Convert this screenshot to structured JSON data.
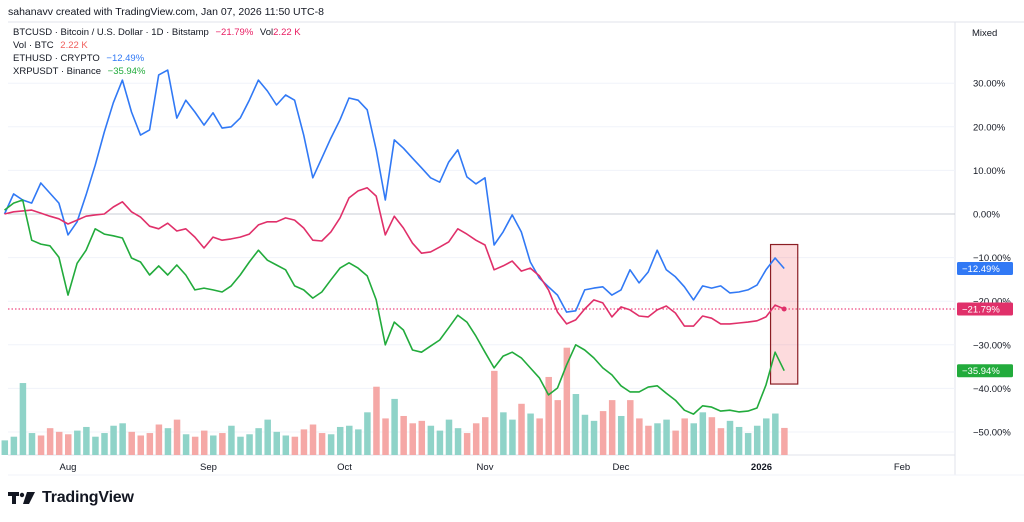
{
  "header": {
    "credit": "sahanavv created with TradingView.com, Jan 07, 2026 11:50 UTC-8"
  },
  "legend": [
    {
      "label": "BTCUSD · Bitcoin / U.S. Dollar · 1D · Bitstamp",
      "value": "−21.79%",
      "extra": "Vol",
      "extra_value": "2.22 K",
      "color": "#e91e63"
    },
    {
      "label": "Vol · BTC",
      "value": "2.22 K",
      "color": "#f0605d"
    },
    {
      "label": "ETHUSD · CRYPTO",
      "value": "−12.49%",
      "color": "#3179f5"
    },
    {
      "label": "XRPUSDT · Binance",
      "value": "−35.94%",
      "color": "#22ab3c"
    }
  ],
  "scale_mode": "Mixed",
  "brand": "TradingView",
  "chart_data": {
    "type": "line",
    "ylabel_unit": "%",
    "ylim": [
      -56,
      37
    ],
    "grid": true,
    "legend_placement": "top-left",
    "y_ticks": [
      "30.00%",
      "20.00%",
      "10.00%",
      "0.00%",
      "−10.00%",
      "−20.00%",
      "−30.00%",
      "−40.00%",
      "−50.00%"
    ],
    "y_tick_values": [
      30,
      20,
      10,
      0,
      -10,
      -20,
      -30,
      -40,
      -50
    ],
    "x_ticks": [
      {
        "label": "Aug",
        "date": "2025-08-01"
      },
      {
        "label": "Sep",
        "date": "2025-09-01"
      },
      {
        "label": "Oct",
        "date": "2025-10-01"
      },
      {
        "label": "Nov",
        "date": "2025-11-01"
      },
      {
        "label": "Dec",
        "date": "2025-12-01"
      },
      {
        "label": "2026",
        "date": "2026-01-01",
        "bold": true
      },
      {
        "label": "Feb",
        "date": "2026-02-01"
      }
    ],
    "x": [
      "2025-07-18",
      "2025-07-20",
      "2025-07-22",
      "2025-07-24",
      "2025-07-26",
      "2025-07-28",
      "2025-07-30",
      "2025-08-01",
      "2025-08-03",
      "2025-08-05",
      "2025-08-07",
      "2025-08-09",
      "2025-08-11",
      "2025-08-13",
      "2025-08-15",
      "2025-08-17",
      "2025-08-19",
      "2025-08-21",
      "2025-08-23",
      "2025-08-25",
      "2025-08-27",
      "2025-08-29",
      "2025-08-31",
      "2025-09-02",
      "2025-09-04",
      "2025-09-06",
      "2025-09-08",
      "2025-09-10",
      "2025-09-12",
      "2025-09-14",
      "2025-09-16",
      "2025-09-18",
      "2025-09-20",
      "2025-09-22",
      "2025-09-24",
      "2025-09-26",
      "2025-09-28",
      "2025-09-30",
      "2025-10-02",
      "2025-10-04",
      "2025-10-06",
      "2025-10-08",
      "2025-10-10",
      "2025-10-12",
      "2025-10-14",
      "2025-10-16",
      "2025-10-18",
      "2025-10-20",
      "2025-10-22",
      "2025-10-24",
      "2025-10-26",
      "2025-10-28",
      "2025-10-30",
      "2025-11-01",
      "2025-11-03",
      "2025-11-05",
      "2025-11-07",
      "2025-11-09",
      "2025-11-11",
      "2025-11-13",
      "2025-11-15",
      "2025-11-17",
      "2025-11-19",
      "2025-11-21",
      "2025-11-23",
      "2025-11-25",
      "2025-11-27",
      "2025-11-29",
      "2025-12-01",
      "2025-12-03",
      "2025-12-05",
      "2025-12-07",
      "2025-12-09",
      "2025-12-11",
      "2025-12-13",
      "2025-12-15",
      "2025-12-17",
      "2025-12-19",
      "2025-12-21",
      "2025-12-23",
      "2025-12-25",
      "2025-12-27",
      "2025-12-29",
      "2025-12-31",
      "2026-01-02",
      "2026-01-04",
      "2026-01-06"
    ],
    "series": [
      {
        "name": "ETHUSD · CRYPTO",
        "color": "#3179f5",
        "last_label": "−12.49%",
        "values": [
          0,
          4.6,
          3.2,
          2.5,
          7.1,
          4.8,
          2.5,
          -4.8,
          -1.8,
          4.4,
          11.2,
          18.8,
          25.5,
          30.7,
          23.4,
          18.1,
          19.3,
          31.9,
          33.0,
          22.0,
          26.1,
          23.4,
          20.4,
          23.2,
          19.7,
          20.0,
          22.0,
          26.1,
          30.7,
          28.2,
          25.0,
          27.3,
          26.1,
          18.1,
          8.3,
          12.8,
          17.4,
          21.6,
          26.6,
          26.1,
          23.9,
          14.7,
          3.2,
          17.0,
          15.1,
          12.8,
          10.6,
          8.3,
          7.3,
          11.9,
          14.7,
          8.5,
          6.9,
          8.3,
          -7.1,
          -4.1,
          -0.2,
          -4.1,
          -11.0,
          -14.7,
          -16.7,
          -18.6,
          -22.5,
          -22.2,
          -17.4,
          -17.0,
          -16.7,
          -18.6,
          -17.4,
          -12.8,
          -15.8,
          -13.3,
          -8.3,
          -12.8,
          -14.4,
          -16.7,
          -19.7,
          -16.5,
          -17.0,
          -16.5,
          -18.1,
          -17.9,
          -17.4,
          -16.3,
          -12.8,
          -10.1,
          -12.49
        ]
      },
      {
        "name": "BTCUSD · Bitcoin / U.S. Dollar · 1D · Bitstamp",
        "color": "#e0306a",
        "last_label": "−21.79%",
        "values": [
          0,
          0.5,
          0.7,
          0.9,
          0.2,
          -0.5,
          -1.1,
          -2.3,
          -1.4,
          -0.5,
          -0.2,
          0,
          1.6,
          2.8,
          0.5,
          -0.7,
          -2.8,
          -3.4,
          -2.1,
          -3.9,
          -3.4,
          -5.3,
          -7.8,
          -5.3,
          -6.0,
          -5.7,
          -5.3,
          -4.6,
          -2.5,
          -1.8,
          -1.8,
          -0.9,
          -1.4,
          -3.2,
          -6.0,
          -6.2,
          -4.1,
          -0.9,
          3.7,
          5.3,
          6.0,
          4.1,
          -4.8,
          -0.5,
          -3.2,
          -6.7,
          -9.0,
          -8.7,
          -7.6,
          -6.4,
          -3.4,
          -4.6,
          -6.0,
          -7.1,
          -12.8,
          -11.9,
          -10.8,
          -13.1,
          -12.4,
          -14.2,
          -17.4,
          -22.5,
          -25.2,
          -24.3,
          -21.8,
          -19.7,
          -20.4,
          -23.6,
          -21.3,
          -22.0,
          -23.4,
          -23.6,
          -22.0,
          -21.1,
          -22.7,
          -25.7,
          -25.7,
          -23.4,
          -23.9,
          -25.2,
          -25.2,
          -25.0,
          -24.8,
          -24.5,
          -23.6,
          -20.9,
          -21.79
        ]
      },
      {
        "name": "XRPUSDT · Binance",
        "color": "#22ab3c",
        "last_label": "−35.94%",
        "values": [
          0.9,
          2.5,
          3.2,
          -6.0,
          -6.9,
          -7.3,
          -9.9,
          -18.6,
          -11.3,
          -8.3,
          -3.4,
          -4.6,
          -5.0,
          -5.5,
          -10.1,
          -11.0,
          -14.0,
          -11.9,
          -14.0,
          -11.7,
          -14.0,
          -17.4,
          -17.0,
          -17.4,
          -17.9,
          -16.5,
          -14.0,
          -11.0,
          -8.3,
          -10.6,
          -11.7,
          -12.8,
          -16.5,
          -17.4,
          -19.3,
          -17.9,
          -15.1,
          -12.4,
          -11.2,
          -12.4,
          -14.2,
          -19.7,
          -30.0,
          -24.8,
          -26.6,
          -31.2,
          -31.7,
          -30.3,
          -28.9,
          -26.1,
          -23.2,
          -24.8,
          -28.0,
          -31.7,
          -35.3,
          -32.6,
          -31.7,
          -33.0,
          -35.3,
          -37.6,
          -41.5,
          -39.9,
          -34.6,
          -30.0,
          -31.2,
          -33.0,
          -35.3,
          -36.9,
          -39.4,
          -40.8,
          -40.8,
          -39.7,
          -39.4,
          -41.1,
          -42.7,
          -45.0,
          -45.9,
          -44.0,
          -44.3,
          -45.2,
          -45.0,
          -45.4,
          -45.2,
          -44.5,
          -39.2,
          -31.7,
          -35.94
        ]
      }
    ],
    "volume": {
      "name": "Vol · BTC",
      "unit": "K",
      "up_color": "#8fd3c8",
      "down_color": "#f5a8a6",
      "values": [
        1.2,
        1.5,
        5.9,
        1.8,
        1.6,
        2.2,
        1.9,
        1.7,
        2.0,
        2.3,
        1.5,
        1.8,
        2.4,
        2.6,
        1.9,
        1.6,
        1.8,
        2.5,
        2.2,
        2.9,
        1.7,
        1.5,
        2.0,
        1.6,
        1.8,
        2.4,
        1.5,
        1.7,
        2.2,
        2.9,
        1.9,
        1.6,
        1.5,
        2.1,
        2.5,
        1.8,
        1.7,
        2.3,
        2.4,
        2.1,
        3.5,
        5.6,
        3.0,
        4.6,
        3.2,
        2.6,
        2.8,
        2.4,
        2.0,
        2.9,
        2.2,
        1.8,
        2.6,
        3.1,
        6.9,
        3.5,
        2.9,
        4.2,
        3.4,
        3.0,
        6.4,
        4.5,
        8.8,
        5.0,
        3.3,
        2.8,
        3.6,
        4.5,
        3.2,
        4.5,
        3.0,
        2.4,
        2.6,
        2.9,
        2.0,
        3.0,
        2.6,
        3.5,
        3.1,
        2.2,
        2.8,
        2.3,
        1.8,
        2.4,
        3.0,
        3.4,
        2.22
      ]
    },
    "highlight": {
      "from": "2026-01-03",
      "to": "2026-01-09",
      "y_range": [
        -39,
        -7
      ],
      "fill": "rgba(242,54,69,0.18)",
      "stroke": "#8b1e24"
    },
    "price_line": {
      "value": -21.79,
      "color": "#e91e63",
      "style": "dotted"
    }
  }
}
